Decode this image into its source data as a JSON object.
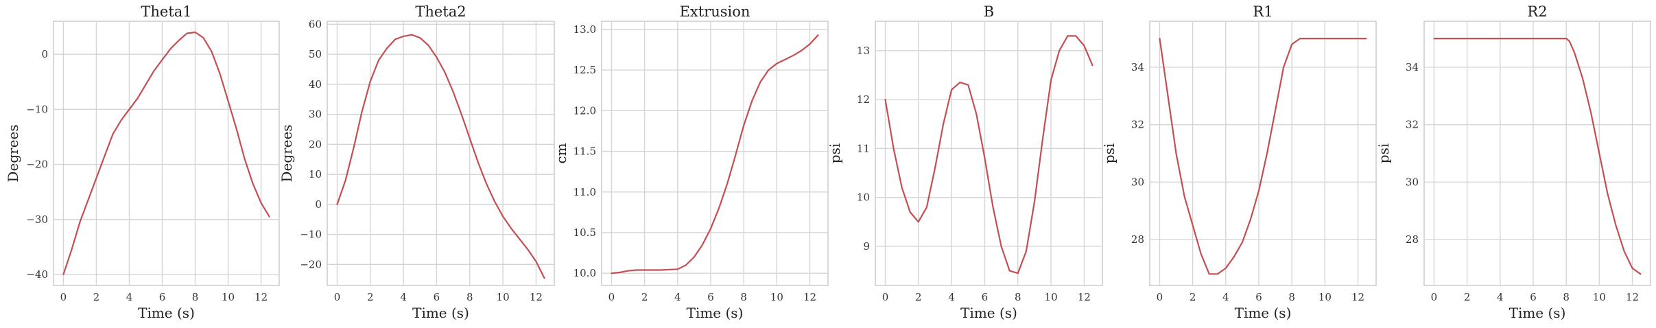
{
  "style": {
    "line_color": "#c44e52",
    "grid": true,
    "background": "#ffffff"
  },
  "chart_data": [
    {
      "type": "line",
      "title": "Theta1",
      "xlabel": "Time (s)",
      "ylabel": "Degrees",
      "xlim": [
        -0.6,
        13.1
      ],
      "ylim": [
        -42,
        6
      ],
      "xticks": [
        0,
        2,
        4,
        6,
        8,
        10,
        12
      ],
      "yticks": [
        -40,
        -30,
        -20,
        -10,
        0
      ],
      "x": [
        0,
        0.5,
        1,
        1.5,
        2,
        2.5,
        3,
        3.5,
        4,
        4.5,
        5,
        5.5,
        6,
        6.5,
        7,
        7.5,
        8,
        8.5,
        9,
        9.5,
        10,
        10.5,
        11,
        11.5,
        12,
        12.5
      ],
      "values": [
        -40,
        -35.5,
        -30.5,
        -26.5,
        -22.5,
        -18.5,
        -14.5,
        -12,
        -10,
        -8,
        -5.5,
        -3,
        -1,
        1,
        2.5,
        3.8,
        4,
        3,
        0.5,
        -3.5,
        -8.5,
        -13.5,
        -19,
        -23.5,
        -27,
        -29.5
      ]
    },
    {
      "type": "line",
      "title": "Theta2",
      "xlabel": "Time (s)",
      "ylabel": "Degrees",
      "xlim": [
        -0.6,
        13.1
      ],
      "ylim": [
        -27,
        61
      ],
      "xticks": [
        0,
        2,
        4,
        6,
        8,
        10,
        12
      ],
      "yticks": [
        -20,
        -10,
        0,
        10,
        20,
        30,
        40,
        50,
        60
      ],
      "x": [
        0,
        0.5,
        1,
        1.5,
        2,
        2.5,
        3,
        3.5,
        4,
        4.5,
        5,
        5.5,
        6,
        6.5,
        7,
        7.5,
        8,
        8.5,
        9,
        9.5,
        10,
        10.5,
        11,
        11.5,
        12,
        12.5
      ],
      "values": [
        0,
        8,
        19,
        31,
        41,
        48,
        52,
        55,
        56,
        56.5,
        55.5,
        53,
        49,
        44,
        37.5,
        30,
        22,
        14,
        7,
        1,
        -4,
        -8,
        -11.5,
        -15,
        -19,
        -24.5
      ]
    },
    {
      "type": "line",
      "title": "Extrusion",
      "xlabel": "Time (s)",
      "ylabel": "cm",
      "xlim": [
        -0.6,
        13.1
      ],
      "ylim": [
        9.85,
        13.1
      ],
      "xticks": [
        0,
        2,
        4,
        6,
        8,
        10,
        12
      ],
      "yticks": [
        10.0,
        10.5,
        11.0,
        11.5,
        12.0,
        12.5,
        13.0
      ],
      "ytick_labels": [
        "10.0",
        "10.5",
        "11.0",
        "11.5",
        "12.0",
        "12.5",
        "13.0"
      ],
      "x": [
        0,
        0.5,
        1,
        1.5,
        2,
        3,
        4,
        4.5,
        5,
        5.5,
        6,
        6.5,
        7,
        7.5,
        8,
        8.5,
        9,
        9.5,
        10,
        10.5,
        11,
        11.5,
        12,
        12.5
      ],
      "values": [
        10.0,
        10.01,
        10.03,
        10.04,
        10.04,
        10.04,
        10.05,
        10.1,
        10.2,
        10.35,
        10.55,
        10.8,
        11.1,
        11.45,
        11.82,
        12.12,
        12.35,
        12.5,
        12.58,
        12.63,
        12.68,
        12.74,
        12.82,
        12.93
      ]
    },
    {
      "type": "line",
      "title": "B",
      "xlabel": "Time (s)",
      "ylabel": "psi",
      "xlim": [
        -0.6,
        13.1
      ],
      "ylim": [
        8.2,
        13.6
      ],
      "xticks": [
        0,
        2,
        4,
        6,
        8,
        10,
        12
      ],
      "yticks": [
        9,
        10,
        11,
        12,
        13
      ],
      "x": [
        0,
        0.5,
        1,
        1.5,
        2,
        2.5,
        3,
        3.5,
        4,
        4.5,
        5,
        5.5,
        6,
        6.5,
        7,
        7.5,
        8,
        8.5,
        9,
        9.5,
        10,
        10.5,
        11,
        11.5,
        12,
        12.5
      ],
      "values": [
        12,
        11,
        10.2,
        9.7,
        9.5,
        9.8,
        10.6,
        11.5,
        12.2,
        12.35,
        12.3,
        11.7,
        10.8,
        9.8,
        9.0,
        8.5,
        8.45,
        8.9,
        9.9,
        11.2,
        12.4,
        13.0,
        13.3,
        13.3,
        13.1,
        12.7
      ]
    },
    {
      "type": "line",
      "title": "R1",
      "xlabel": "Time (s)",
      "ylabel": "psi",
      "xlim": [
        -0.6,
        13.1
      ],
      "ylim": [
        26.4,
        35.6
      ],
      "xticks": [
        0,
        2,
        4,
        6,
        8,
        10,
        12
      ],
      "yticks": [
        28,
        30,
        32,
        34
      ],
      "x": [
        0,
        0.5,
        1,
        1.5,
        2,
        2.5,
        3,
        3.5,
        4,
        4.5,
        5,
        5.5,
        6,
        6.5,
        7,
        7.5,
        8,
        8.5,
        9,
        10,
        11,
        12,
        12.5
      ],
      "values": [
        35,
        33,
        31,
        29.5,
        28.5,
        27.5,
        26.8,
        26.8,
        27.0,
        27.4,
        27.9,
        28.7,
        29.7,
        31,
        32.5,
        34,
        34.8,
        35,
        35,
        35,
        35,
        35,
        35
      ]
    },
    {
      "type": "line",
      "title": "R2",
      "xlabel": "Time (s)",
      "ylabel": "psi",
      "xlim": [
        -0.6,
        13.1
      ],
      "ylim": [
        26.4,
        35.6
      ],
      "xticks": [
        0,
        2,
        4,
        6,
        8,
        10,
        12
      ],
      "yticks": [
        28,
        30,
        32,
        34
      ],
      "x": [
        0,
        1,
        2,
        3,
        4,
        5,
        6,
        7,
        8,
        8.2,
        8.5,
        9,
        9.5,
        10,
        10.5,
        11,
        11.5,
        12,
        12.5
      ],
      "values": [
        35,
        35,
        35,
        35,
        35,
        35,
        35,
        35,
        35,
        34.9,
        34.5,
        33.6,
        32.4,
        31.0,
        29.6,
        28.5,
        27.6,
        27.0,
        26.8
      ]
    }
  ]
}
